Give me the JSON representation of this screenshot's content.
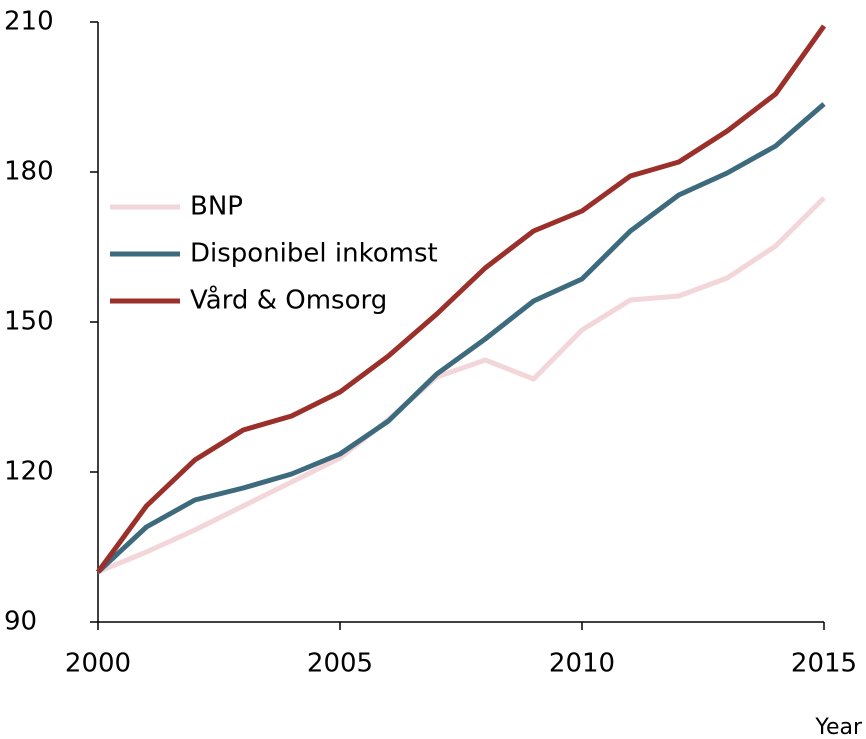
{
  "chart_data": {
    "type": "line",
    "x": [
      2000,
      2001,
      2002,
      2003,
      2004,
      2005,
      2006,
      2007,
      2008,
      2009,
      2010,
      2011,
      2012,
      2013,
      2014,
      2015
    ],
    "series": [
      {
        "name": "BNP",
        "color": "#f2d6da",
        "values": [
          100,
          104,
          108.4,
          113.2,
          118,
          122.8,
          130.5,
          139,
          142.4,
          138.6,
          148.4,
          154.4,
          155.2,
          158.8,
          165.2,
          174.8
        ]
      },
      {
        "name": "Disponibel inkomst",
        "color": "#3d6b7d",
        "values": [
          100,
          109,
          114.4,
          116.8,
          119.6,
          123.6,
          130.2,
          139.6,
          146.6,
          154.2,
          158.6,
          168.2,
          175.4,
          179.8,
          185.2,
          193.6
        ]
      },
      {
        "name": "Vård & Omsorg",
        "color": "#9b2f2a",
        "values": [
          100,
          113.2,
          122.4,
          128.4,
          131.2,
          136,
          143.2,
          151.6,
          160.8,
          168.2,
          172.2,
          179.2,
          182,
          188.2,
          195.6,
          209.2
        ]
      }
    ],
    "xlabel": "Year",
    "xlim": [
      2000,
      2015
    ],
    "xticks": [
      2000,
      2005,
      2010,
      2015
    ],
    "ylim": [
      90,
      210
    ],
    "yticks": [
      90,
      120,
      150,
      180,
      210
    ]
  }
}
